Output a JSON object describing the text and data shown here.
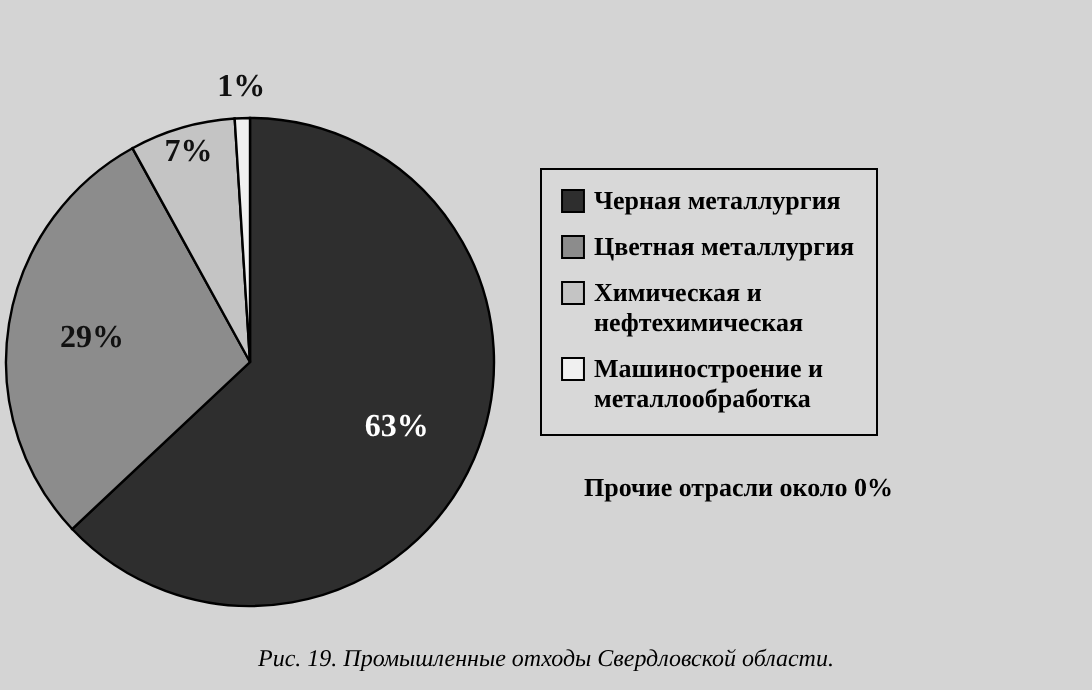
{
  "chart_data": {
    "type": "pie",
    "categories": [
      "Черная металлургия",
      "Цветная металлургия",
      "Химическая и нефтехимическая",
      "Машиностроение и металлообработка"
    ],
    "values": [
      63,
      29,
      7,
      1
    ],
    "colors": [
      "#2e2e2e",
      "#8c8c8c",
      "#c4c4c4",
      "#f0f0f0"
    ],
    "value_labels": [
      "63%",
      "29%",
      "7%",
      "1%"
    ],
    "legend": "right",
    "annotations": [
      "Прочие отрасли около 0%",
      "Рис. 19. Промышленные отходы Свердловской области."
    ]
  }
}
